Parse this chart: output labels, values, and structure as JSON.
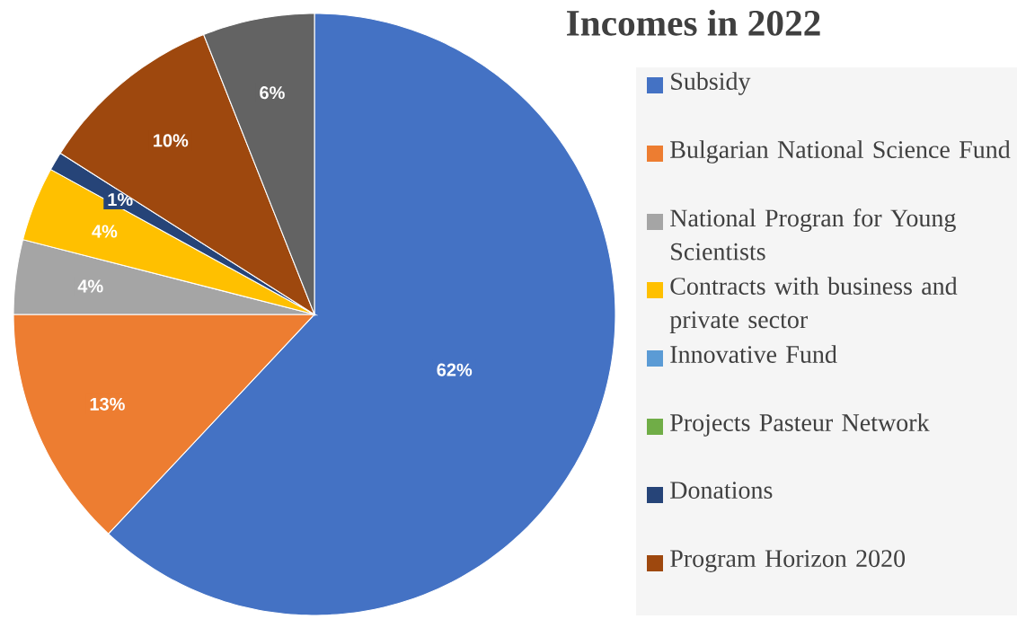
{
  "chart_data": {
    "type": "pie",
    "title": "Incomes in 2022",
    "categories": [
      "Subsidy",
      "Bulgarian National Science Fund",
      "National Progran for Young Scientists",
      "Contracts with business and private sector",
      "Innovative Fund",
      "Projects Pasteur Network",
      "Donations",
      "Program Horizon 2020",
      null
    ],
    "values": [
      62,
      13,
      4,
      4,
      0,
      0,
      1,
      10,
      6
    ],
    "colors": [
      "#4472c4",
      "#ed7d31",
      "#a5a5a5",
      "#ffc000",
      "#5b9bd5",
      "#70ad47",
      "#264478",
      "#9e480e",
      "#636363"
    ],
    "value_labels": [
      "62%",
      "13%",
      "4%",
      "4%",
      null,
      null,
      "1%",
      "10%",
      "6%"
    ],
    "legend": "right"
  }
}
